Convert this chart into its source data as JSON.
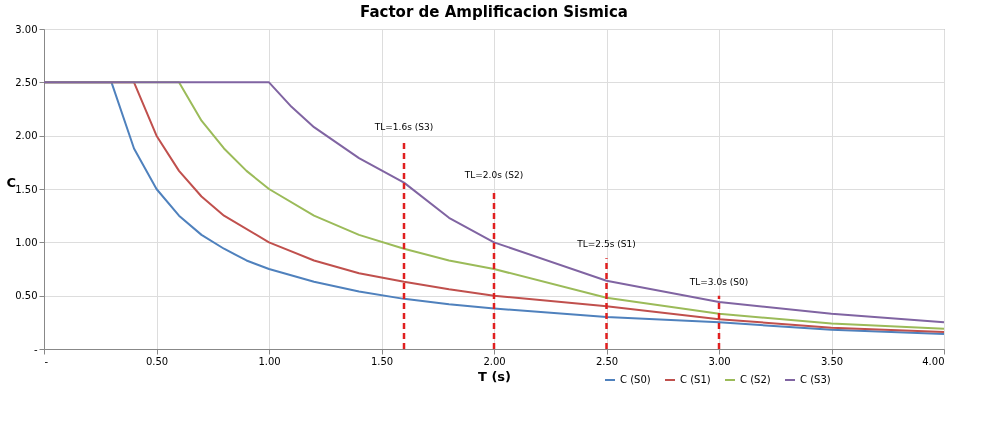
{
  "chart_data": {
    "type": "line",
    "title": "Factor de Amplificacion Sismica",
    "xlabel": "T (s)",
    "ylabel": "C",
    "xlim": [
      0,
      4
    ],
    "ylim": [
      0,
      3
    ],
    "xticks": [
      {
        "value": 0,
        "label": "-"
      },
      {
        "value": 0.5,
        "label": "0.50"
      },
      {
        "value": 1,
        "label": "1.00"
      },
      {
        "value": 1.5,
        "label": "1.50"
      },
      {
        "value": 2,
        "label": "2.00"
      },
      {
        "value": 2.5,
        "label": "2.50"
      },
      {
        "value": 3,
        "label": "3.00"
      },
      {
        "value": 3.5,
        "label": "3.50"
      },
      {
        "value": 4,
        "label": "4.00"
      }
    ],
    "yticks": [
      {
        "value": 0,
        "label": "-"
      },
      {
        "value": 0.5,
        "label": "0.50"
      },
      {
        "value": 1,
        "label": "1.00"
      },
      {
        "value": 1.5,
        "label": "1.50"
      },
      {
        "value": 2,
        "label": "2.00"
      },
      {
        "value": 2.5,
        "label": "2.50"
      },
      {
        "value": 3,
        "label": "3.00"
      }
    ],
    "grid": true,
    "legend": "bottom right",
    "marker": "none",
    "line_style": "solid",
    "series": [
      {
        "name": "C (S0)",
        "color": "#4f81bd",
        "x": [
          0,
          0.3,
          0.4,
          0.5,
          0.6,
          0.7,
          0.8,
          0.9,
          1.0,
          1.2,
          1.4,
          1.6,
          1.8,
          2.0,
          2.5,
          3.0,
          3.5,
          4.0
        ],
        "values": [
          2.5,
          2.5,
          1.88,
          1.5,
          1.25,
          1.07,
          0.94,
          0.83,
          0.75,
          0.63,
          0.54,
          0.47,
          0.42,
          0.38,
          0.3,
          0.25,
          0.18,
          0.14
        ]
      },
      {
        "name": "C (S1)",
        "color": "#c0504d",
        "x": [
          0,
          0.4,
          0.5,
          0.6,
          0.7,
          0.8,
          1.0,
          1.2,
          1.4,
          1.6,
          1.8,
          2.0,
          2.5,
          3.0,
          3.5,
          4.0
        ],
        "values": [
          2.5,
          2.5,
          2.0,
          1.67,
          1.43,
          1.25,
          1.0,
          0.83,
          0.71,
          0.63,
          0.56,
          0.5,
          0.4,
          0.28,
          0.2,
          0.16
        ]
      },
      {
        "name": "C (S2)",
        "color": "#9bbb59",
        "x": [
          0,
          0.6,
          0.7,
          0.8,
          0.9,
          1.0,
          1.2,
          1.4,
          1.6,
          1.8,
          2.0,
          2.5,
          3.0,
          3.5,
          4.0
        ],
        "values": [
          2.5,
          2.5,
          2.14,
          1.88,
          1.67,
          1.5,
          1.25,
          1.07,
          0.94,
          0.83,
          0.75,
          0.48,
          0.33,
          0.24,
          0.19
        ]
      },
      {
        "name": "C (S3)",
        "color": "#8064a2",
        "x": [
          0,
          1.0,
          1.1,
          1.2,
          1.4,
          1.6,
          1.8,
          2.0,
          2.5,
          3.0,
          3.5,
          4.0
        ],
        "values": [
          2.5,
          2.5,
          2.27,
          2.08,
          1.79,
          1.56,
          1.23,
          1.0,
          0.64,
          0.44,
          0.33,
          0.25
        ]
      }
    ],
    "ref_lines": [
      {
        "axis": "x",
        "value": 1.6,
        "color": "#e02020",
        "line_style": "dashed"
      },
      {
        "axis": "x",
        "value": 2.0,
        "color": "#e02020",
        "line_style": "dashed"
      },
      {
        "axis": "x",
        "value": 2.5,
        "color": "#e02020",
        "line_style": "dashed"
      },
      {
        "axis": "x",
        "value": 3.0,
        "color": "#e02020",
        "line_style": "dashed"
      }
    ],
    "annotations": [
      {
        "text": "TL=1.6s (S3)",
        "x": 1.6,
        "y": 1.95
      },
      {
        "text": "TL=2.0s (S2)",
        "x": 2.0,
        "y": 1.5
      },
      {
        "text": "TL=2.5s (S1)",
        "x": 2.5,
        "y": 0.85
      },
      {
        "text": "TL=3.0s (S0)",
        "x": 3.0,
        "y": 0.5
      }
    ]
  }
}
